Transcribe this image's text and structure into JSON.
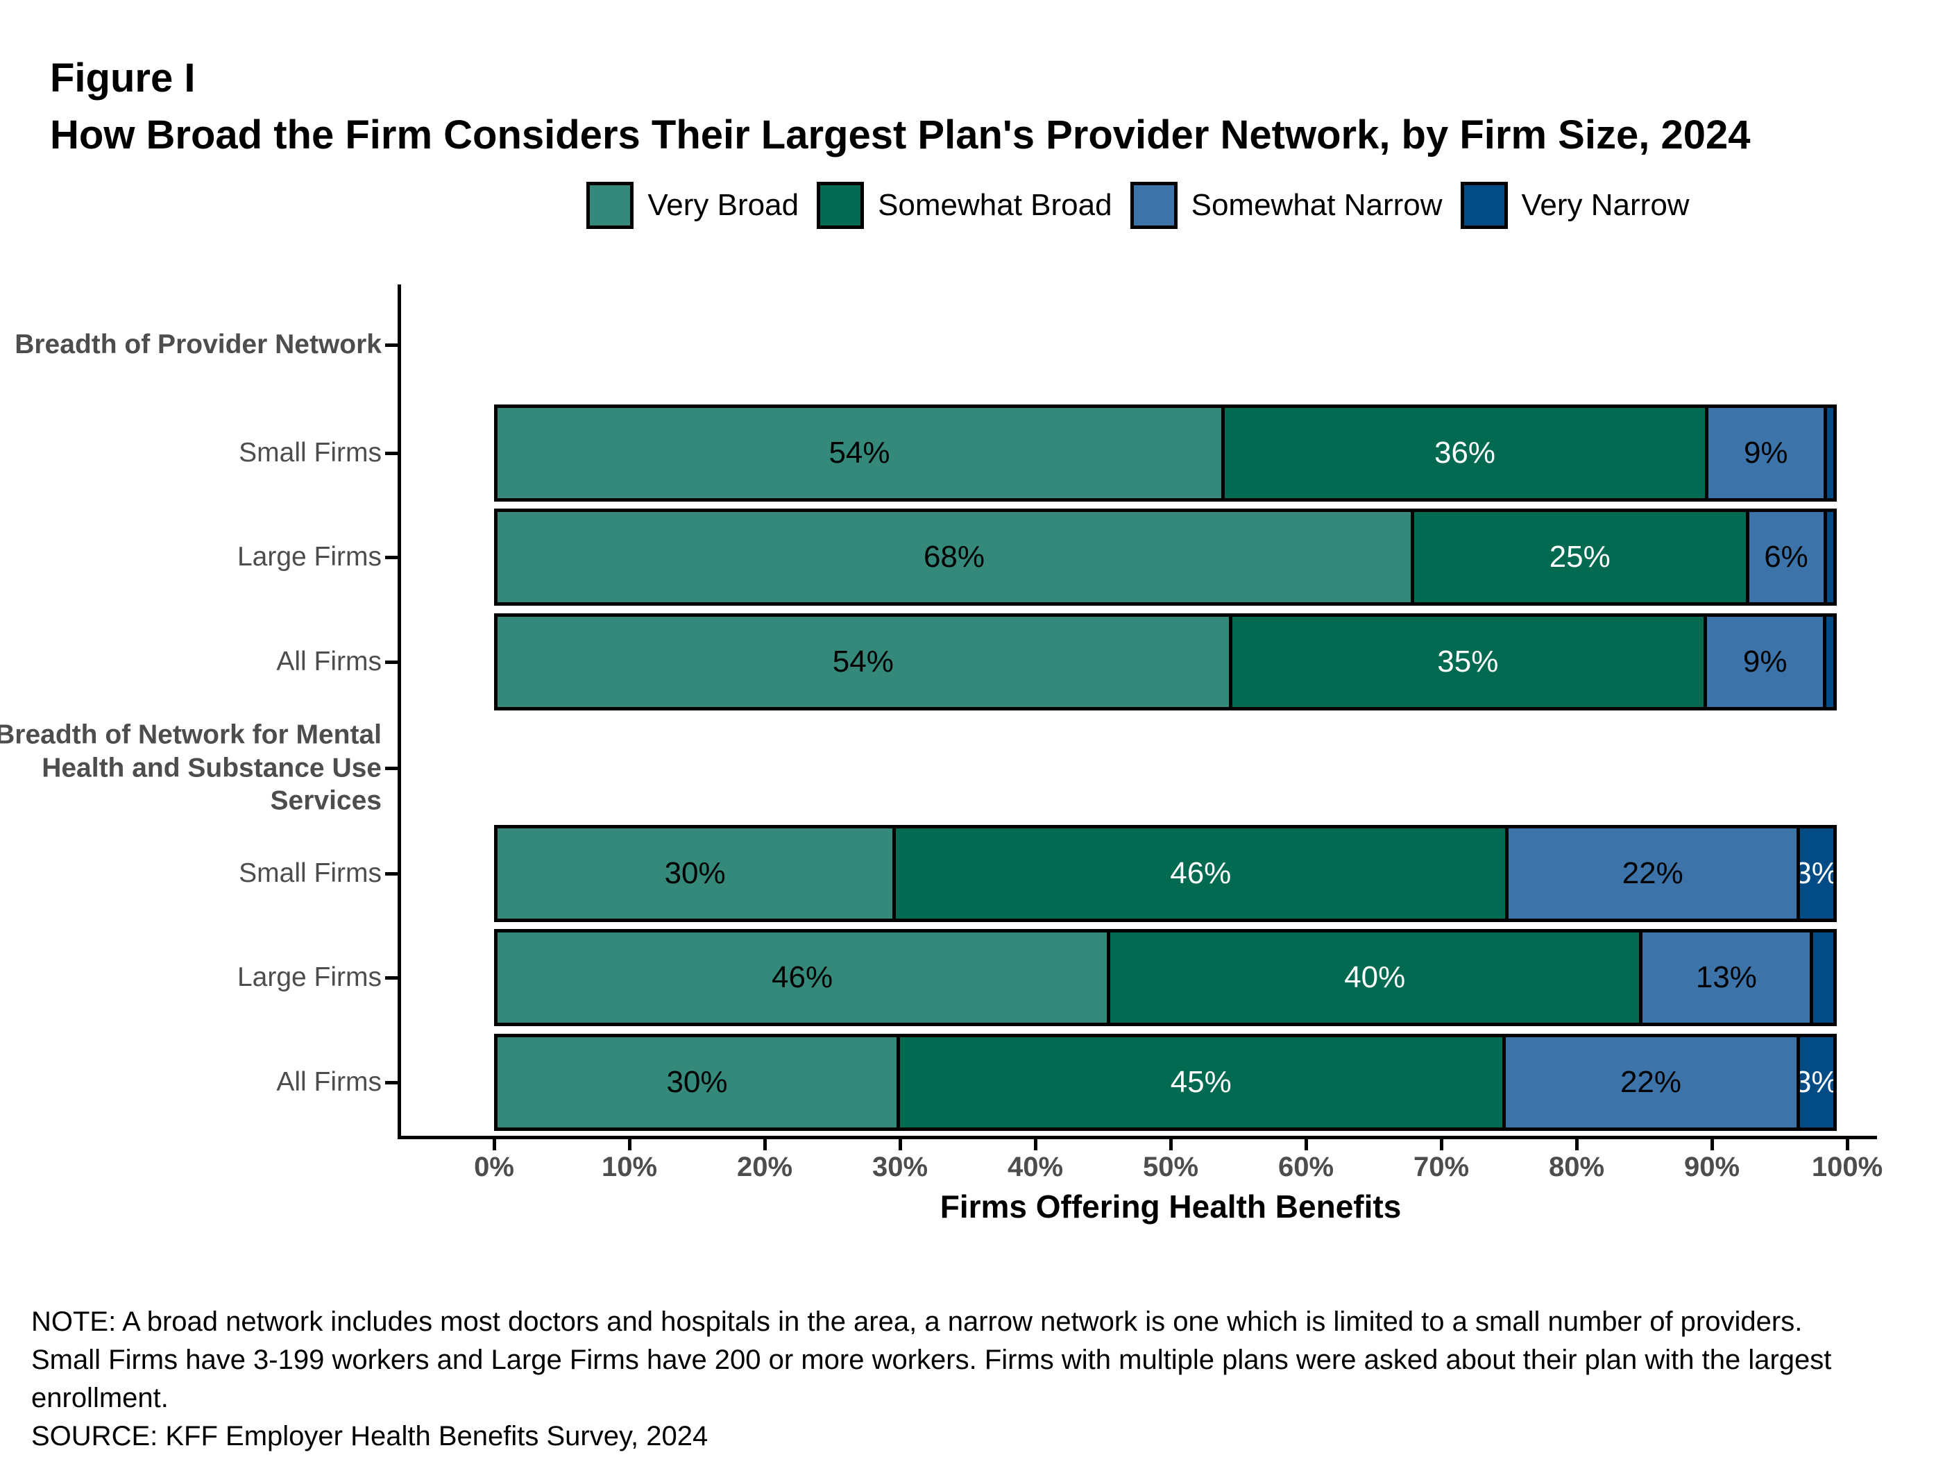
{
  "figure_label": "Figure I",
  "title": "How Broad the Firm Considers Their Largest Plan's Provider Network, by Firm Size, 2024",
  "legend": [
    {
      "label": "Very Broad",
      "color": "#35897A",
      "value_text_color": "#000000"
    },
    {
      "label": "Somewhat Broad",
      "color": "#016A51",
      "value_text_color": "#ffffff"
    },
    {
      "label": "Somewhat Narrow",
      "color": "#3C73A8",
      "value_text_color": "#000000"
    },
    {
      "label": "Very Narrow",
      "color": "#034B85",
      "value_text_color": "#ffffff"
    }
  ],
  "chart_data": {
    "type": "bar",
    "stacked": true,
    "orientation": "horizontal",
    "series_names": [
      "Very Broad",
      "Somewhat Broad",
      "Somewhat Narrow",
      "Very Narrow"
    ],
    "x_axis": {
      "label": "Firms Offering Health Benefits",
      "range": [
        0,
        100
      ],
      "tick_step": 10,
      "ticks": [
        "0%",
        "10%",
        "20%",
        "30%",
        "40%",
        "50%",
        "60%",
        "70%",
        "80%",
        "90%",
        "100%"
      ]
    },
    "groups": [
      {
        "header": "Breadth of Provider Network",
        "rows": [
          {
            "category": "Small Firms",
            "values": [
              54,
              36,
              9,
              1
            ],
            "labels": [
              "54%",
              "36%",
              "9%",
              ""
            ]
          },
          {
            "category": "Large Firms",
            "values": [
              68,
              25,
              6,
              1
            ],
            "labels": [
              "68%",
              "25%",
              "6%",
              ""
            ]
          },
          {
            "category": "All Firms",
            "values": [
              54,
              35,
              9,
              1
            ],
            "labels": [
              "54%",
              "35%",
              "9%",
              ""
            ]
          }
        ]
      },
      {
        "header": "Breadth of Network for Mental\nHealth and Substance Use\nServices",
        "rows": [
          {
            "category": "Small Firms",
            "values": [
              30,
              46,
              22,
              3
            ],
            "labels": [
              "30%",
              "46%",
              "22%",
              "3%"
            ]
          },
          {
            "category": "Large Firms",
            "values": [
              46,
              40,
              13,
              2
            ],
            "labels": [
              "46%",
              "40%",
              "13%",
              ""
            ]
          },
          {
            "category": "All Firms",
            "values": [
              30,
              45,
              22,
              3
            ],
            "labels": [
              "30%",
              "45%",
              "22%",
              "3%"
            ]
          }
        ]
      }
    ]
  },
  "notes": {
    "note": "NOTE: A broad network includes most doctors and hospitals in the area, a narrow network is one which is limited to a small number of providers.\nSmall Firms have 3-199 workers and Large Firms have 200 or more workers.  Firms with multiple plans were asked about their plan with the largest\nenrollment.",
    "source": "SOURCE: KFF Employer Health Benefits Survey, 2024"
  }
}
